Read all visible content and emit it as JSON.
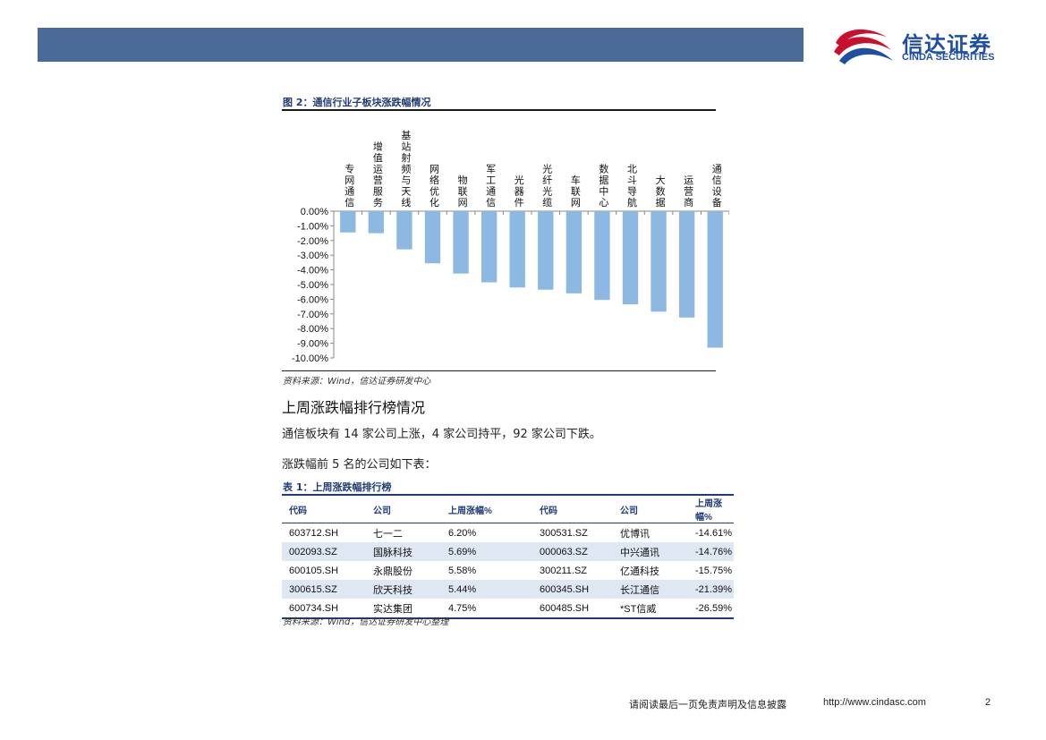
{
  "header": {
    "logo_cn": "信达证券",
    "logo_en": "CINDA SECURITIES",
    "bar_color": "#4a6b98",
    "logo_icon": "cinda-swoosh-icon"
  },
  "figure": {
    "title": "图 2：通信行业子板块涨跌幅情况",
    "source": "资料来源：Wind，信达证券研发中心"
  },
  "chart_data": {
    "type": "bar",
    "categories": [
      "专网通信",
      "增值运营服务",
      "基站射频与天线",
      "网络优化",
      "物联网",
      "军工通信",
      "光器件",
      "光纤光缆",
      "车联网",
      "数据中心",
      "北斗导航",
      "大数据",
      "运营商",
      "通信设备"
    ],
    "values": [
      -1.45,
      -1.5,
      -2.6,
      -3.55,
      -4.25,
      -4.85,
      -5.2,
      -5.35,
      -5.6,
      -6.05,
      -6.35,
      -6.85,
      -7.25,
      -9.3
    ],
    "ylim": [
      -10,
      0
    ],
    "yticks": [
      "0.00%",
      "-1.00%",
      "-2.00%",
      "-3.00%",
      "-4.00%",
      "-5.00%",
      "-6.00%",
      "-7.00%",
      "-8.00%",
      "-9.00%",
      "-10.00%"
    ],
    "bar_color": "#8db8e2",
    "title": "",
    "xlabel": "",
    "ylabel": "",
    "grid": false,
    "legend": "none"
  },
  "section": {
    "heading": "上周涨跌幅排行榜情况",
    "para1": "通信板块有 14 家公司上涨，4 家公司持平，92 家公司下跌。",
    "para2": "涨跌幅前 5 名的公司如下表："
  },
  "table": {
    "title": "表 1：上周涨跌幅排行榜",
    "headers": [
      "代码",
      "公司",
      "上周涨幅%",
      "代码",
      "公司",
      "上周涨幅%"
    ],
    "rows": [
      [
        "603712.SH",
        "七一二",
        "6.20%",
        "300531.SZ",
        "优博讯",
        "-14.61%"
      ],
      [
        "002093.SZ",
        "国脉科技",
        "5.69%",
        "000063.SZ",
        "中兴通讯",
        "-14.76%"
      ],
      [
        "600105.SH",
        "永鼎股份",
        "5.58%",
        "300211.SZ",
        "亿通科技",
        "-15.75%"
      ],
      [
        "300615.SZ",
        "欣天科技",
        "5.44%",
        "600345.SH",
        "长江通信",
        "-21.39%"
      ],
      [
        "600734.SH",
        "实达集团",
        "4.75%",
        "600485.SH",
        "*ST信威",
        "-26.59%"
      ]
    ],
    "source": "资料来源：Wind，信达证券研发中心整理",
    "alt_row_color": "#dfe7f2"
  },
  "footer": {
    "disclaimer": "请阅读最后一页免责声明及信息披露",
    "url": "http://www.cindasc.com",
    "page": "2"
  }
}
